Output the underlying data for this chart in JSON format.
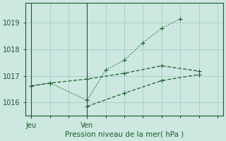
{
  "background_color": "#cce8e0",
  "grid_color": "#aad0c8",
  "line_color": "#1a5c2a",
  "title": "Pression niveau de la mer( hPa )",
  "ylim": [
    1015.5,
    1019.75
  ],
  "yticks": [
    1016,
    1017,
    1018,
    1019
  ],
  "xtick_labels": [
    "Jeu",
    "Ven"
  ],
  "xtick_positions": [
    0,
    3
  ],
  "xmin": -0.3,
  "xmax": 10.3,
  "series1_x": [
    0,
    1,
    3,
    4,
    5,
    6,
    7,
    8
  ],
  "series1_y": [
    1016.62,
    1016.73,
    1016.08,
    1017.22,
    1017.6,
    1018.25,
    1018.8,
    1019.15
  ],
  "series2_x": [
    0,
    1,
    3,
    5,
    7,
    9
  ],
  "series2_y": [
    1016.62,
    1016.73,
    1016.88,
    1017.1,
    1017.38,
    1017.18
  ],
  "series3_x": [
    3,
    5,
    7,
    9
  ],
  "series3_y": [
    1015.85,
    1016.35,
    1016.82,
    1017.05
  ]
}
